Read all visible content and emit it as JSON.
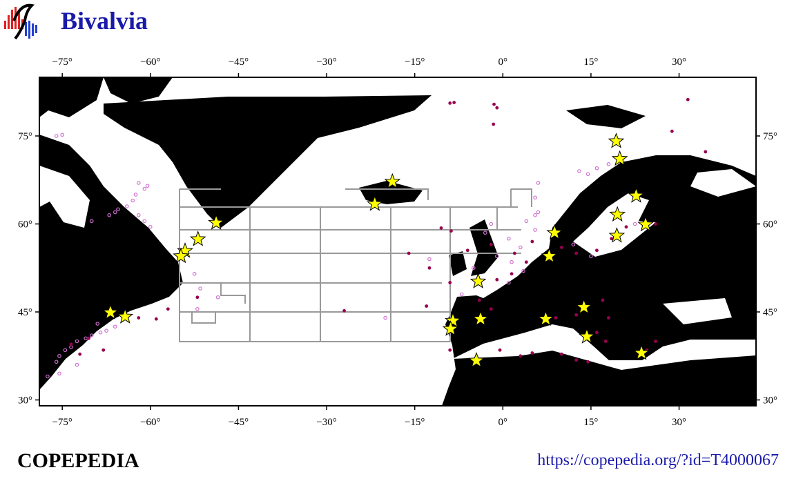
{
  "map": {
    "title": "Bivalvia",
    "brand": "COPEPEDIA",
    "url": "https://copepedia.org/?id=T4000067",
    "lonlim": [
      -78.9,
      43.1
    ],
    "latlim": [
      29,
      85
    ],
    "lonticks": [
      {
        "value": -75,
        "label": "−75°"
      },
      {
        "value": -60,
        "label": "−60°"
      },
      {
        "value": -45,
        "label": "−45°"
      },
      {
        "value": -30,
        "label": "−30°"
      },
      {
        "value": -15,
        "label": "−15°"
      },
      {
        "value": 0,
        "label": "0°"
      },
      {
        "value": 15,
        "label": "15°"
      },
      {
        "value": 30,
        "label": "30°"
      }
    ],
    "latticks": [
      {
        "value": 30,
        "label": "30°"
      },
      {
        "value": 45,
        "label": "45°"
      },
      {
        "value": 60,
        "label": "60°"
      },
      {
        "value": 75,
        "label": "75°"
      }
    ],
    "star_color": "#ffff00",
    "stars": [
      [
        -48.8,
        60.2
      ],
      [
        -51.9,
        57.4
      ],
      [
        -54.1,
        55.4
      ],
      [
        -54.8,
        54.5
      ],
      [
        -18.8,
        67.2
      ],
      [
        -21.8,
        63.4
      ],
      [
        -66.8,
        44.9
      ],
      [
        -64.3,
        44.2
      ],
      [
        19.3,
        74.1
      ],
      [
        19.9,
        71.1
      ],
      [
        22.7,
        64.8
      ],
      [
        19.5,
        61.6
      ],
      [
        19.4,
        58.0
      ],
      [
        24.3,
        59.9
      ],
      [
        8.8,
        58.5
      ],
      [
        7.9,
        54.5
      ],
      [
        -4.2,
        50.2
      ],
      [
        13.8,
        45.8
      ],
      [
        7.3,
        43.8
      ],
      [
        14.3,
        40.8
      ],
      [
        -3.8,
        43.8
      ],
      [
        -8.5,
        43.5
      ],
      [
        -8.9,
        42.1
      ],
      [
        -4.5,
        36.7
      ],
      [
        23.6,
        38.0
      ]
    ],
    "dark_color": "#990050",
    "dark_points": [
      [
        -9.0,
        80.6
      ],
      [
        -8.3,
        80.7
      ],
      [
        -1.5,
        80.4
      ],
      [
        -1.0,
        79.8
      ],
      [
        -1.6,
        77.0
      ],
      [
        31.5,
        81.2
      ],
      [
        28.8,
        75.8
      ],
      [
        34.5,
        72.3
      ],
      [
        -10.5,
        59.3
      ],
      [
        -8.8,
        58.8
      ],
      [
        -6.0,
        55.5
      ],
      [
        -2.0,
        56.5
      ],
      [
        2.0,
        55.0
      ],
      [
        4.0,
        53.5
      ],
      [
        1.5,
        51.5
      ],
      [
        -1.0,
        50.5
      ],
      [
        5.0,
        57.0
      ],
      [
        10.0,
        56.0
      ],
      [
        12.5,
        55.0
      ],
      [
        16.0,
        55.5
      ],
      [
        18.5,
        57.5
      ],
      [
        21.0,
        59.5
      ],
      [
        26.0,
        60.0
      ],
      [
        -12.5,
        52.5
      ],
      [
        -9.0,
        50.0
      ],
      [
        -4.0,
        47.0
      ],
      [
        -2.0,
        45.5
      ],
      [
        -27.0,
        45.2
      ],
      [
        -13.0,
        46.0
      ],
      [
        9.0,
        44.0
      ],
      [
        12.5,
        44.5
      ],
      [
        16.0,
        41.5
      ],
      [
        17.5,
        40.0
      ],
      [
        10.0,
        37.8
      ],
      [
        12.5,
        36.8
      ],
      [
        14.5,
        36.5
      ],
      [
        17.0,
        47.0
      ],
      [
        18.0,
        44.0
      ],
      [
        3.0,
        37.5
      ],
      [
        -0.5,
        38.5
      ],
      [
        5.0,
        38.0
      ],
      [
        -9.0,
        38.5
      ],
      [
        -68.0,
        38.5
      ],
      [
        -70.5,
        40.5
      ],
      [
        -73.5,
        39.5
      ],
      [
        -72.0,
        37.8
      ],
      [
        -62.0,
        44.0
      ],
      [
        -57.0,
        45.5
      ],
      [
        -52.0,
        47.5
      ],
      [
        -59.0,
        43.8
      ],
      [
        -16.0,
        55.0
      ],
      [
        8.0,
        54.0
      ],
      [
        24.5,
        38.5
      ],
      [
        26.0,
        40.0
      ]
    ],
    "light_color": "#d070d0",
    "light_points": [
      [
        -76.0,
        75.0
      ],
      [
        -75.0,
        75.2
      ],
      [
        -62.0,
        67.0
      ],
      [
        -61.0,
        66.0
      ],
      [
        -62.5,
        65.0
      ],
      [
        -63.0,
        64.0
      ],
      [
        -64.0,
        63.0
      ],
      [
        -65.5,
        62.5
      ],
      [
        -66.0,
        62.0
      ],
      [
        -60.5,
        66.5
      ],
      [
        -62.0,
        61.5
      ],
      [
        -61.0,
        60.5
      ],
      [
        -60.0,
        59.5
      ],
      [
        -67.0,
        61.5
      ],
      [
        -70.0,
        60.5
      ],
      [
        -52.5,
        51.5
      ],
      [
        -51.5,
        49.0
      ],
      [
        -48.5,
        47.5
      ],
      [
        -68.5,
        41.5
      ],
      [
        -70.0,
        41.0
      ],
      [
        -71.0,
        40.5
      ],
      [
        -72.5,
        40.0
      ],
      [
        -73.5,
        39.0
      ],
      [
        -74.5,
        38.5
      ],
      [
        -75.5,
        37.5
      ],
      [
        -76.0,
        36.5
      ],
      [
        -69.0,
        43.0
      ],
      [
        -67.5,
        41.8
      ],
      [
        -66.0,
        42.5
      ],
      [
        -77.5,
        34.0
      ],
      [
        -75.5,
        34.5
      ],
      [
        -72.5,
        36.0
      ],
      [
        -52.0,
        45.5
      ],
      [
        -2.0,
        60.0
      ],
      [
        -3.0,
        58.5
      ],
      [
        1.0,
        57.5
      ],
      [
        3.0,
        56.0
      ],
      [
        -1.0,
        54.5
      ],
      [
        1.5,
        53.5
      ],
      [
        3.5,
        52.0
      ],
      [
        -5.0,
        52.5
      ],
      [
        5.5,
        59.0
      ],
      [
        4.0,
        60.5
      ],
      [
        6.0,
        62.0
      ],
      [
        5.5,
        61.5
      ],
      [
        12.0,
        56.5
      ],
      [
        15.0,
        54.5
      ],
      [
        13.0,
        69.0
      ],
      [
        16.0,
        69.5
      ],
      [
        18.0,
        70.2
      ],
      [
        14.5,
        68.5
      ],
      [
        6.0,
        67.0
      ],
      [
        -12.5,
        54.0
      ],
      [
        -7.0,
        48.0
      ],
      [
        1.0,
        50.0
      ],
      [
        -20.0,
        44.0
      ],
      [
        5.5,
        64.5
      ],
      [
        22.5,
        60.0
      ]
    ]
  }
}
